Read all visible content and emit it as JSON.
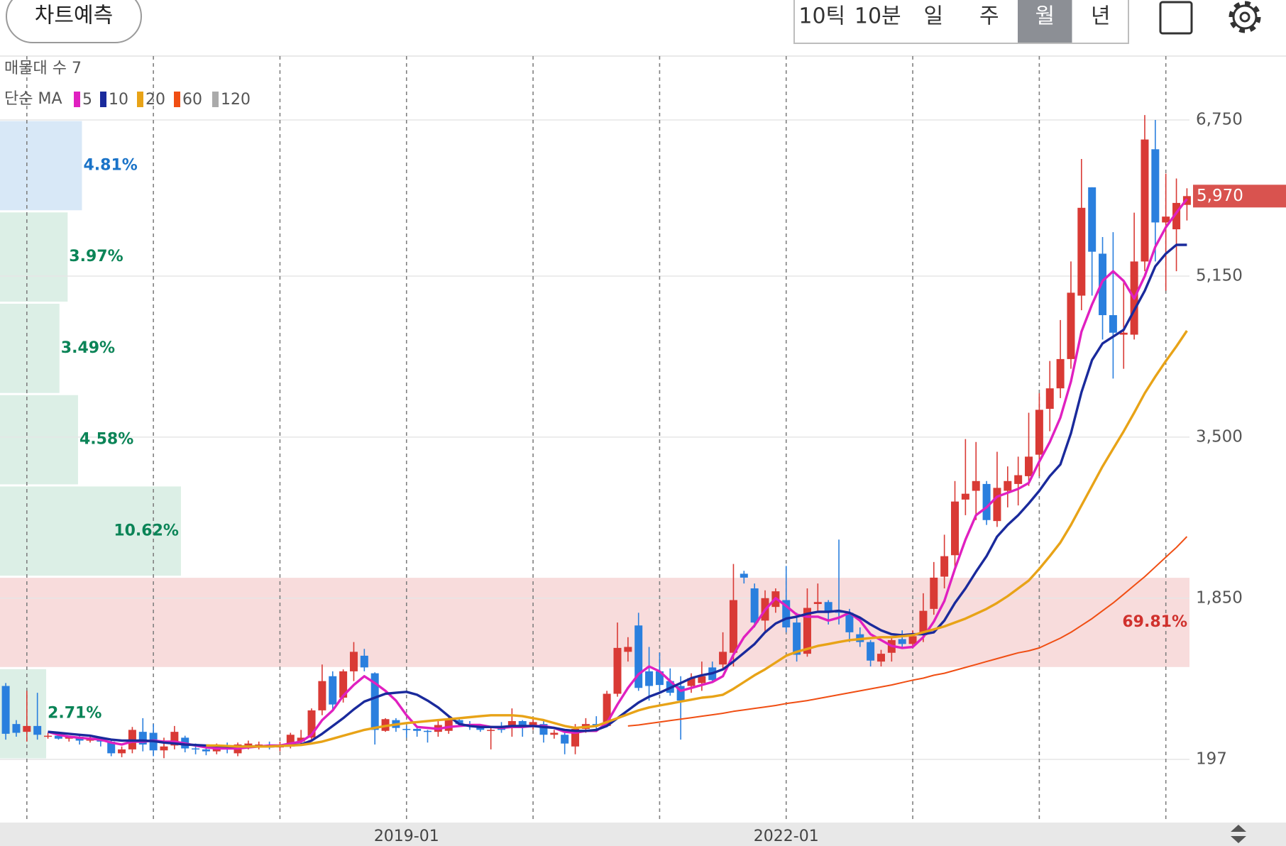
{
  "header": {
    "button": "차트예측",
    "tabs": [
      "10틱",
      "10분",
      "일",
      "주",
      "월",
      "년"
    ],
    "selected_tab": 4
  },
  "chart_data": {
    "type": "candlestick",
    "ma_label": "단순 MA",
    "categories": [
      null,
      null,
      null,
      null,
      null,
      null,
      null,
      null,
      null,
      null,
      null,
      null,
      null,
      null,
      null,
      null,
      null,
      null,
      null,
      null,
      null,
      null,
      null,
      null,
      null,
      null,
      null,
      null,
      null,
      null,
      null,
      null,
      null,
      null,
      null,
      null,
      null,
      null,
      "2019-01",
      null,
      null,
      null,
      null,
      null,
      null,
      null,
      null,
      null,
      null,
      null,
      null,
      null,
      null,
      null,
      null,
      null,
      null,
      null,
      null,
      null,
      null,
      null,
      null,
      null,
      null,
      null,
      null,
      null,
      null,
      null,
      null,
      null,
      null,
      null,
      "2022-01",
      null,
      null,
      null,
      null,
      null,
      null,
      null,
      null,
      null,
      null,
      null,
      null,
      null,
      null,
      null,
      null,
      null,
      null,
      null,
      null,
      null,
      null,
      null,
      null,
      null,
      null,
      null,
      null,
      null,
      null,
      null,
      null,
      null,
      null,
      null,
      null,
      null,
      null
    ],
    "xticks": [
      2,
      14,
      26,
      38,
      50,
      62,
      74,
      86,
      98,
      110
    ],
    "ylim": [
      -450,
      7405
    ],
    "yticks": [
      197,
      {
        "value": 1850,
        "label": "1,850"
      },
      {
        "value": 3500,
        "label": "3,500"
      },
      {
        "value": 5150,
        "label": "5,150"
      },
      {
        "value": 6750,
        "label": "6,750"
      }
    ],
    "grid": true,
    "up_color": "#d93a35",
    "down_color": "#2a7fde",
    "candles": [
      [
        950,
        980,
        400,
        460
      ],
      [
        560,
        600,
        430,
        470
      ],
      [
        480,
        900,
        380,
        540
      ],
      [
        540,
        880,
        400,
        450
      ],
      [
        430,
        470,
        410,
        440
      ],
      [
        440,
        460,
        400,
        410
      ],
      [
        410,
        440,
        380,
        430
      ],
      [
        430,
        450,
        350,
        390
      ],
      [
        390,
        430,
        370,
        400
      ],
      [
        400,
        420,
        330,
        380
      ],
      [
        380,
        400,
        230,
        260
      ],
      [
        260,
        330,
        220,
        300
      ],
      [
        300,
        530,
        260,
        500
      ],
      [
        480,
        620,
        280,
        350
      ],
      [
        470,
        560,
        230,
        290
      ],
      [
        290,
        420,
        210,
        330
      ],
      [
        340,
        540,
        300,
        480
      ],
      [
        420,
        440,
        270,
        310
      ],
      [
        310,
        360,
        250,
        300
      ],
      [
        300,
        330,
        240,
        280
      ],
      [
        280,
        360,
        250,
        330
      ],
      [
        330,
        370,
        260,
        300
      ],
      [
        260,
        370,
        230,
        350
      ],
      [
        330,
        390,
        300,
        360
      ],
      [
        340,
        380,
        300,
        350
      ],
      [
        340,
        380,
        300,
        330
      ],
      [
        320,
        380,
        280,
        340
      ],
      [
        330,
        470,
        310,
        450
      ],
      [
        380,
        500,
        360,
        420
      ],
      [
        420,
        720,
        400,
        700
      ],
      [
        700,
        1170,
        650,
        1000
      ],
      [
        1050,
        1100,
        700,
        760
      ],
      [
        830,
        1120,
        780,
        1100
      ],
      [
        1100,
        1400,
        1000,
        1300
      ],
      [
        1260,
        1330,
        1100,
        1140
      ],
      [
        1080,
        1090,
        350,
        500
      ],
      [
        490,
        620,
        480,
        610
      ],
      [
        600,
        620,
        480,
        520
      ],
      [
        510,
        540,
        420,
        500
      ],
      [
        510,
        530,
        430,
        490
      ],
      [
        490,
        500,
        370,
        480
      ],
      [
        480,
        590,
        430,
        550
      ],
      [
        490,
        640,
        460,
        610
      ],
      [
        600,
        630,
        530,
        560
      ],
      [
        560,
        590,
        500,
        540
      ],
      [
        540,
        560,
        480,
        500
      ],
      [
        490,
        540,
        300,
        500
      ],
      [
        520,
        580,
        470,
        500
      ],
      [
        520,
        720,
        430,
        590
      ],
      [
        590,
        600,
        430,
        530
      ],
      [
        540,
        620,
        500,
        580
      ],
      [
        560,
        590,
        370,
        450
      ],
      [
        450,
        500,
        410,
        470
      ],
      [
        450,
        480,
        250,
        360
      ],
      [
        330,
        560,
        250,
        510
      ],
      [
        510,
        620,
        470,
        560
      ],
      [
        560,
        640,
        490,
        540
      ],
      [
        540,
        900,
        530,
        870
      ],
      [
        870,
        1600,
        840,
        1340
      ],
      [
        1300,
        1450,
        1200,
        1350
      ],
      [
        1570,
        1700,
        900,
        930
      ],
      [
        1100,
        1350,
        800,
        950
      ],
      [
        1100,
        1290,
        900,
        960
      ],
      [
        1000,
        1130,
        850,
        880
      ],
      [
        950,
        1050,
        400,
        800
      ],
      [
        950,
        1080,
        880,
        1030
      ],
      [
        980,
        1200,
        900,
        1050
      ],
      [
        1140,
        1200,
        980,
        1010
      ],
      [
        1170,
        1500,
        1120,
        1300
      ],
      [
        1290,
        2200,
        1150,
        1830
      ],
      [
        2100,
        2130,
        2000,
        2060
      ],
      [
        1950,
        2000,
        1550,
        1600
      ],
      [
        1620,
        1930,
        1500,
        1850
      ],
      [
        1760,
        1950,
        1700,
        1920
      ],
      [
        1830,
        2180,
        1500,
        1550
      ],
      [
        1600,
        1700,
        1200,
        1270
      ],
      [
        1280,
        1950,
        1250,
        1750
      ],
      [
        1790,
        2000,
        1700,
        1810
      ],
      [
        1810,
        1830,
        1580,
        1720
      ],
      [
        1720,
        2450,
        1580,
        1700
      ],
      [
        1700,
        1740,
        1400,
        1500
      ],
      [
        1480,
        1550,
        1350,
        1400
      ],
      [
        1400,
        1420,
        1150,
        1210
      ],
      [
        1200,
        1320,
        1150,
        1280
      ],
      [
        1290,
        1450,
        1200,
        1420
      ],
      [
        1430,
        1520,
        1350,
        1380
      ],
      [
        1380,
        1520,
        1350,
        1460
      ],
      [
        1470,
        1900,
        1400,
        1720
      ],
      [
        1740,
        2220,
        1680,
        2060
      ],
      [
        2070,
        2500,
        1950,
        2280
      ],
      [
        2290,
        3050,
        2150,
        2840
      ],
      [
        2860,
        3480,
        2700,
        2920
      ],
      [
        2950,
        3450,
        2650,
        3050
      ],
      [
        3020,
        3050,
        2600,
        2650
      ],
      [
        2640,
        3350,
        2580,
        2980
      ],
      [
        2950,
        3200,
        2780,
        3050
      ],
      [
        3020,
        3300,
        2800,
        3110
      ],
      [
        3100,
        3750,
        3000,
        3300
      ],
      [
        3320,
        3950,
        3100,
        3780
      ],
      [
        3790,
        4280,
        3560,
        4000
      ],
      [
        4000,
        4700,
        3900,
        4300
      ],
      [
        4300,
        5300,
        4200,
        4980
      ],
      [
        4950,
        6350,
        4800,
        5850
      ],
      [
        6060,
        6060,
        4950,
        5400
      ],
      [
        5380,
        5550,
        4500,
        4750
      ],
      [
        4750,
        5600,
        4100,
        4570
      ],
      [
        4550,
        5100,
        4200,
        4570
      ],
      [
        4550,
        5800,
        4500,
        5300
      ],
      [
        5300,
        6800,
        5200,
        6550
      ],
      [
        6450,
        6750,
        5300,
        5700
      ],
      [
        5700,
        6200,
        5000,
        5760
      ],
      [
        5630,
        6150,
        5200,
        5900
      ],
      [
        5880,
        6050,
        5720,
        5970
      ]
    ],
    "series": [
      {
        "name": "5",
        "color": "#e020c0",
        "values": [
          null,
          null,
          null,
          null,
          480,
          450,
          430,
          420,
          410,
          400,
          370,
          350,
          380,
          380,
          390,
          380,
          380,
          360,
          340,
          320,
          310,
          310,
          310,
          320,
          330,
          340,
          340,
          360,
          380,
          450,
          600,
          700,
          850,
          960,
          1050,
          980,
          900,
          800,
          650,
          530,
          520,
          510,
          530,
          540,
          550,
          550,
          530,
          520,
          530,
          530,
          540,
          540,
          520,
          480,
          470,
          490,
          490,
          570,
          760,
          930,
          1070,
          1150,
          1100,
          1000,
          900,
          930,
          960,
          990,
          1050,
          1270,
          1450,
          1570,
          1730,
          1850,
          1770,
          1680,
          1660,
          1660,
          1620,
          1650,
          1700,
          1620,
          1480,
          1420,
          1360,
          1340,
          1350,
          1450,
          1610,
          1820,
          2150,
          2450,
          2700,
          2780,
          2890,
          2930,
          2970,
          3030,
          3250,
          3450,
          3700,
          4070,
          4580,
          4860,
          5100,
          5200,
          5100,
          4920,
          5150,
          5450,
          5650,
          5800,
          5940
        ]
      },
      {
        "name": "10",
        "color": "#1a2a9c",
        "values": [
          null,
          null,
          null,
          null,
          480,
          470,
          460,
          450,
          440,
          420,
          400,
          390,
          390,
          390,
          385,
          370,
          360,
          350,
          345,
          340,
          335,
          330,
          330,
          330,
          330,
          330,
          335,
          340,
          350,
          390,
          460,
          540,
          620,
          710,
          790,
          830,
          870,
          880,
          890,
          860,
          800,
          730,
          640,
          560,
          540,
          530,
          530,
          530,
          540,
          540,
          540,
          530,
          520,
          500,
          490,
          490,
          500,
          540,
          620,
          700,
          780,
          840,
          880,
          930,
          980,
          1030,
          1060,
          1080,
          1120,
          1200,
          1290,
          1380,
          1500,
          1590,
          1640,
          1660,
          1690,
          1710,
          1710,
          1720,
          1700,
          1650,
          1580,
          1520,
          1480,
          1470,
          1480,
          1480,
          1500,
          1620,
          1800,
          1950,
          2120,
          2280,
          2480,
          2600,
          2700,
          2820,
          2950,
          3100,
          3220,
          3540,
          3960,
          4290,
          4460,
          4530,
          4600,
          4800,
          5000,
          5250,
          5380,
          5470,
          5470
        ]
      },
      {
        "name": "20",
        "color": "#e8a317",
        "values": [
          null,
          null,
          null,
          null,
          null,
          null,
          null,
          null,
          null,
          null,
          null,
          null,
          null,
          null,
          null,
          null,
          null,
          null,
          null,
          340,
          340,
          335,
          330,
          330,
          330,
          330,
          335,
          340,
          345,
          360,
          380,
          410,
          440,
          470,
          500,
          520,
          540,
          555,
          570,
          580,
          590,
          600,
          610,
          620,
          630,
          640,
          650,
          650,
          650,
          640,
          620,
          600,
          570,
          540,
          520,
          530,
          540,
          580,
          620,
          660,
          700,
          730,
          750,
          770,
          790,
          810,
          830,
          840,
          860,
          920,
          990,
          1060,
          1120,
          1190,
          1260,
          1300,
          1330,
          1360,
          1380,
          1400,
          1420,
          1430,
          1440,
          1450,
          1450,
          1460,
          1470,
          1500,
          1530,
          1560,
          1600,
          1640,
          1690,
          1740,
          1800,
          1870,
          1950,
          2030,
          2150,
          2280,
          2420,
          2600,
          2800,
          3000,
          3200,
          3380,
          3560,
          3750,
          3950,
          4120,
          4280,
          4430,
          4590
        ]
      },
      {
        "name": "60",
        "color": "#f04e13",
        "values": [
          null,
          null,
          null,
          null,
          null,
          null,
          null,
          null,
          null,
          null,
          null,
          null,
          null,
          null,
          null,
          null,
          null,
          null,
          null,
          null,
          null,
          null,
          null,
          null,
          null,
          null,
          null,
          null,
          null,
          null,
          null,
          null,
          null,
          null,
          null,
          null,
          null,
          null,
          null,
          null,
          null,
          null,
          null,
          null,
          null,
          null,
          null,
          null,
          null,
          null,
          null,
          null,
          null,
          null,
          null,
          null,
          null,
          null,
          null,
          540,
          550,
          565,
          580,
          595,
          610,
          625,
          640,
          655,
          670,
          690,
          705,
          720,
          735,
          750,
          770,
          785,
          800,
          820,
          840,
          860,
          880,
          900,
          920,
          940,
          960,
          985,
          1010,
          1030,
          1060,
          1080,
          1110,
          1140,
          1170,
          1200,
          1230,
          1260,
          1290,
          1310,
          1340,
          1390,
          1440,
          1500,
          1570,
          1640,
          1720,
          1800,
          1890,
          1980,
          2070,
          2170,
          2270,
          2370,
          2480
        ]
      },
      {
        "name": "120",
        "color": "#aaaaaa"
      }
    ],
    "current": {
      "value": 5970,
      "label": "5,970",
      "color": "#d9534f"
    },
    "volume_profile": {
      "label": "매물대 수 7",
      "range": [
        197,
        6750
      ],
      "values": [
        2.71,
        69.81,
        10.62,
        4.58,
        3.49,
        3.97,
        4.81
      ],
      "value_labels": [
        "2.71%",
        "69.81%",
        "10.62%",
        "4.58%",
        "3.49%",
        "3.97%",
        "4.81%"
      ],
      "colors": [
        "#dcefe6",
        "#f8dcdc",
        "#dcefe6",
        "#dcefe6",
        "#dcefe6",
        "#dcefe6",
        "#d8e8f7"
      ],
      "label_colors": [
        "#0b8457",
        "#d0312d",
        "#0b8457",
        "#0b8457",
        "#0b8457",
        "#0b8457",
        "#1a73c8"
      ]
    }
  }
}
